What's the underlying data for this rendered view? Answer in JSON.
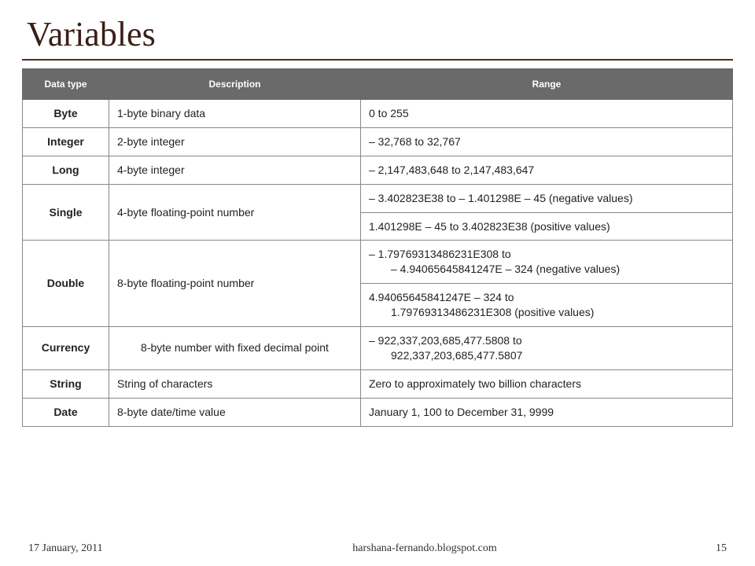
{
  "title": "Variables",
  "table": {
    "headers": [
      "Data type",
      "Description",
      "Range"
    ],
    "rows": [
      {
        "type": "Byte",
        "desc": "1-byte binary data",
        "ranges": [
          "0 to 255"
        ]
      },
      {
        "type": "Integer",
        "desc": "2-byte integer",
        "ranges": [
          "– 32,768 to 32,767"
        ]
      },
      {
        "type": "Long",
        "desc": "4-byte integer",
        "ranges": [
          "– 2,147,483,648 to 2,147,483,647"
        ]
      },
      {
        "type": "Single",
        "desc": "4-byte floating-point number",
        "ranges": [
          "– 3.402823E38 to – 1.401298E – 45 (negative values)",
          "1.401298E – 45 to 3.402823E38 (positive values)"
        ]
      },
      {
        "type": "Double",
        "desc": "8-byte floating-point number",
        "ranges": [
          "– 1.79769313486231E308 to\n– 4.94065645841247E – 324 (negative values)",
          "4.94065645841247E – 324 to\n1.79769313486231E308 (positive values)"
        ]
      },
      {
        "type": "Currency",
        "desc": "8-byte number with fixed decimal point",
        "desc_center": true,
        "ranges": [
          "– 922,337,203,685,477.5808 to\n922,337,203,685,477.5807"
        ]
      },
      {
        "type": "String",
        "desc": "String of characters",
        "ranges": [
          "Zero to approximately two billion characters"
        ]
      },
      {
        "type": "Date",
        "desc": "8-byte date/time value",
        "ranges": [
          "January 1, 100 to December 31, 9999"
        ]
      }
    ]
  },
  "footer": {
    "date": "17 January, 2011",
    "site": "harshana-fernando.blogspot.com",
    "page": "15"
  },
  "colors": {
    "header_bg": "#6a6a6a",
    "header_fg": "#ffffff",
    "title_color": "#3b1e17",
    "rule_color": "#5a2b1f",
    "border_color": "#888888"
  }
}
